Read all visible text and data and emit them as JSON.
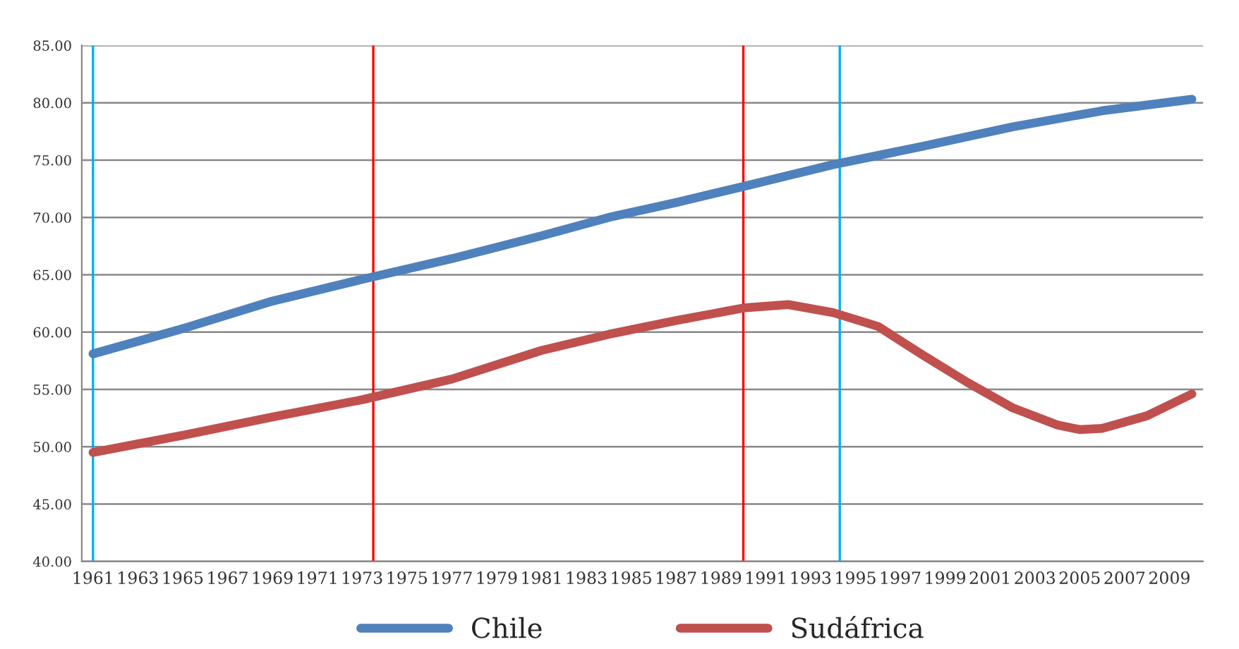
{
  "chart_data": {
    "type": "line",
    "series": [
      {
        "name": "Chile",
        "color": "#4f81bd",
        "x": [
          1961,
          1965,
          1969,
          1973,
          1977,
          1981,
          1984,
          1987,
          1990,
          1994,
          1998,
          2002,
          2006,
          2010
        ],
        "values": [
          58.1,
          60.3,
          62.7,
          64.6,
          66.4,
          68.4,
          70.0,
          71.3,
          72.7,
          74.6,
          76.2,
          77.9,
          79.3,
          80.3
        ]
      },
      {
        "name": "Sudáfrica",
        "color": "#c0504d",
        "x": [
          1961,
          1965,
          1969,
          1973,
          1977,
          1981,
          1984,
          1987,
          1990,
          1992,
          1994,
          1996,
          1998,
          2000,
          2002,
          2004,
          2005,
          2006,
          2008,
          2010
        ],
        "values": [
          49.5,
          51.0,
          52.6,
          54.1,
          55.9,
          58.4,
          59.8,
          61.0,
          62.1,
          62.4,
          61.7,
          60.5,
          58.0,
          55.6,
          53.4,
          51.9,
          51.5,
          51.6,
          52.7,
          54.6
        ]
      }
    ],
    "xlim": [
      1960.5,
      2010.5
    ],
    "xticks": [
      1961,
      1963,
      1965,
      1967,
      1969,
      1971,
      1973,
      1975,
      1977,
      1979,
      1981,
      1983,
      1985,
      1987,
      1989,
      1991,
      1993,
      1995,
      1997,
      1999,
      2001,
      2003,
      2005,
      2007,
      2009
    ],
    "ylim": [
      40,
      85
    ],
    "yticks": [
      {
        "value": 40,
        "label": "40.00"
      },
      {
        "value": 45,
        "label": "45.00"
      },
      {
        "value": 50,
        "label": "50.00"
      },
      {
        "value": 55,
        "label": "55.00"
      },
      {
        "value": 60,
        "label": "60.00"
      },
      {
        "value": 65,
        "label": "65.00"
      },
      {
        "value": 70,
        "label": "70.00"
      },
      {
        "value": 75,
        "label": "75.00"
      },
      {
        "value": 80,
        "label": "80.00"
      },
      {
        "value": 85,
        "label": "85.00"
      }
    ],
    "ref_lines": [
      {
        "axis": "x",
        "value": 1961,
        "color": "#00b0f0"
      },
      {
        "axis": "x",
        "value": 1973.5,
        "color": "#ff0000"
      },
      {
        "axis": "x",
        "value": 1990,
        "color": "#ff0000"
      },
      {
        "axis": "x",
        "value": 1994.3,
        "color": "#00b0f0"
      }
    ],
    "grid": "y",
    "legend": "bottom",
    "marker": "none",
    "line_style": "solid"
  }
}
